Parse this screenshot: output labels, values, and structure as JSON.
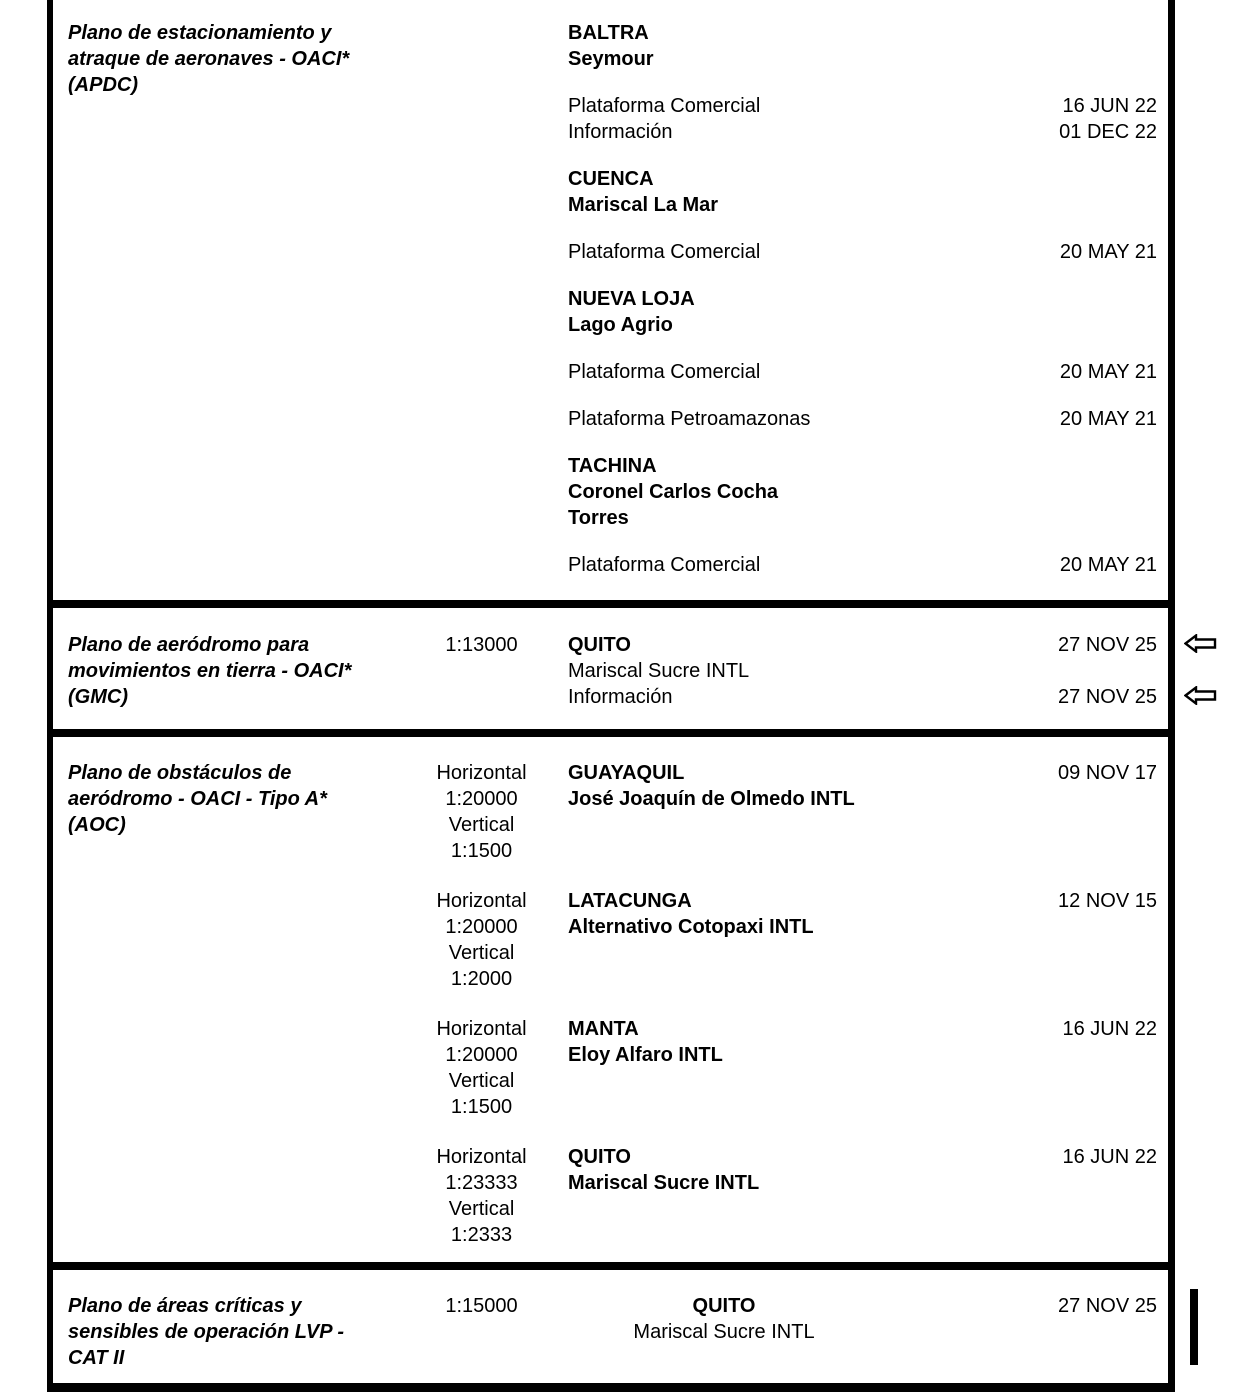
{
  "document": {
    "kind": "aeronautical-chart-index-table",
    "colors": {
      "text": "#000000",
      "background": "#ffffff",
      "border": "#000000"
    },
    "icons": {
      "arrow": "left-white-arrow-icon",
      "change_bar": "vertical-change-bar"
    }
  },
  "table": {
    "sections": [
      {
        "name_lines": [
          "Plano de estacionamiento y",
          "atraque de aeronaves - OACI*",
          "(APDC)"
        ],
        "blocks": [
          {
            "scale_lines": [],
            "lines": [
              {
                "text": "BALTRA",
                "bold": true
              },
              {
                "text": "Seymour",
                "bold": true
              }
            ]
          },
          {
            "scale_lines": [],
            "lines": [
              {
                "text": "Plataforma Comercial",
                "date": "16 JUN 22"
              },
              {
                "text": "Información",
                "date": "01 DEC 22"
              }
            ]
          },
          {
            "scale_lines": [],
            "lines": [
              {
                "text": "CUENCA",
                "bold": true
              },
              {
                "text": "Mariscal La Mar",
                "bold": true
              }
            ]
          },
          {
            "scale_lines": [],
            "lines": [
              {
                "text": "Plataforma Comercial",
                "date": "20 MAY 21"
              }
            ]
          },
          {
            "scale_lines": [],
            "lines": [
              {
                "text": "NUEVA LOJA",
                "bold": true
              },
              {
                "text": "Lago Agrio",
                "bold": true
              }
            ]
          },
          {
            "scale_lines": [],
            "lines": [
              {
                "text": "Plataforma Comercial",
                "date": "20 MAY 21"
              }
            ]
          },
          {
            "scale_lines": [],
            "lines": [
              {
                "text": "Plataforma Petroamazonas",
                "date": "20 MAY 21"
              }
            ]
          },
          {
            "scale_lines": [],
            "lines": [
              {
                "text": "TACHINA",
                "bold": true
              },
              {
                "text": "Coronel Carlos Cocha",
                "bold": true
              },
              {
                "text": "Torres",
                "bold": true
              }
            ]
          },
          {
            "scale_lines": [],
            "lines": [
              {
                "text": "Plataforma Comercial",
                "date": "20 MAY 21"
              }
            ]
          }
        ]
      },
      {
        "name_lines": [
          "Plano de aeródromo para",
          "movimientos en tierra - OACI*",
          "(GMC)"
        ],
        "blocks": [
          {
            "scale_lines": [
              "1:13000"
            ],
            "lines": [
              {
                "text": "QUITO",
                "bold": true,
                "date": "27 NOV 25",
                "arrow": true
              },
              {
                "text": "Mariscal Sucre INTL"
              },
              {
                "text": "Información",
                "date": "27 NOV 25",
                "arrow": true
              }
            ]
          }
        ]
      },
      {
        "name_lines": [
          "Plano de obstáculos de",
          "aeródromo - OACI - Tipo A*",
          "(AOC)"
        ],
        "blocks": [
          {
            "scale_lines": [
              "Horizontal",
              "1:20000",
              "Vertical",
              "1:1500"
            ],
            "lines": [
              {
                "text": "GUAYAQUIL",
                "bold": true,
                "date": "09 NOV 17"
              },
              {
                "text": "José Joaquín de Olmedo INTL",
                "bold": true
              }
            ]
          },
          {
            "scale_lines": [
              "Horizontal",
              "1:20000",
              "Vertical",
              "1:2000"
            ],
            "lines": [
              {
                "text": "LATACUNGA",
                "bold": true,
                "date": "12 NOV 15"
              },
              {
                "text": "Alternativo Cotopaxi INTL",
                "bold": true
              }
            ]
          },
          {
            "scale_lines": [
              "Horizontal",
              "1:20000",
              "Vertical",
              "1:1500"
            ],
            "lines": [
              {
                "text": "MANTA",
                "bold": true,
                "date": "16 JUN 22"
              },
              {
                "text": "Eloy Alfaro INTL",
                "bold": true
              }
            ]
          },
          {
            "scale_lines": [
              "Horizontal",
              "1:23333",
              "Vertical",
              "1:2333"
            ],
            "lines": [
              {
                "text": "QUITO",
                "bold": true,
                "date": "16 JUN 22"
              },
              {
                "text": "Mariscal Sucre INTL",
                "bold": true
              }
            ]
          }
        ]
      },
      {
        "name_lines": [
          "Plano de áreas críticas y",
          "sensibles de operación LVP -",
          "CAT II"
        ],
        "change_bar": true,
        "blocks": [
          {
            "scale_lines": [
              "1:15000"
            ],
            "lines": [
              {
                "text": "QUITO",
                "bold": true,
                "center": true,
                "date": "27 NOV 25"
              },
              {
                "text": "Mariscal Sucre INTL",
                "center": true
              }
            ]
          }
        ]
      }
    ]
  }
}
